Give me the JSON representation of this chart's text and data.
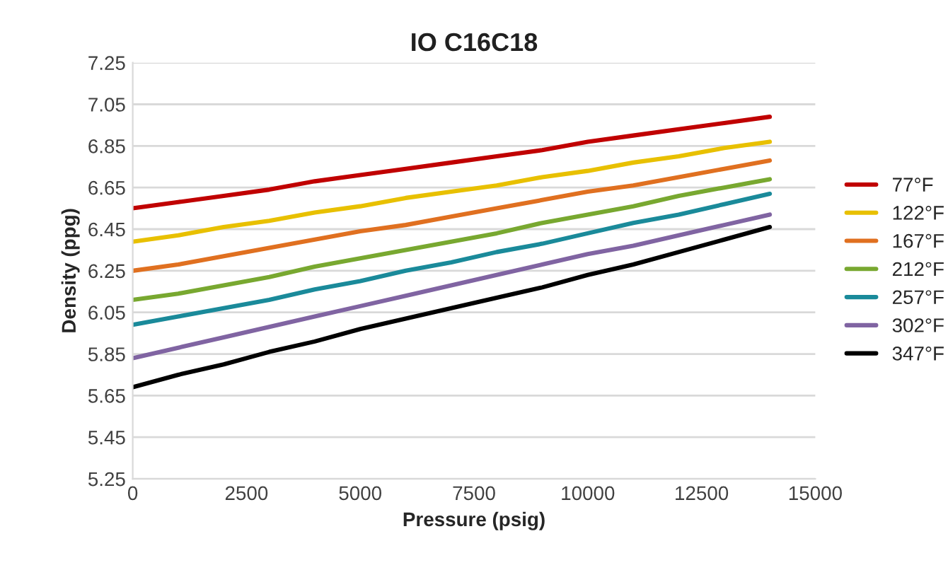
{
  "chart_data": {
    "type": "line",
    "title": "IO C16C18",
    "xlabel": "Pressure (psig)",
    "ylabel": "Density (ppg)",
    "x": [
      0,
      1000,
      2000,
      3000,
      4000,
      5000,
      6000,
      7000,
      8000,
      9000,
      10000,
      11000,
      12000,
      13000,
      14000
    ],
    "series": [
      {
        "name": "77°F",
        "color": "#c00000",
        "values": [
          6.55,
          6.58,
          6.61,
          6.64,
          6.68,
          6.71,
          6.74,
          6.77,
          6.8,
          6.83,
          6.87,
          6.9,
          6.93,
          6.96,
          6.99
        ]
      },
      {
        "name": "122°F",
        "color": "#e8c000",
        "values": [
          6.39,
          6.42,
          6.46,
          6.49,
          6.53,
          6.56,
          6.6,
          6.63,
          6.66,
          6.7,
          6.73,
          6.77,
          6.8,
          6.84,
          6.87
        ]
      },
      {
        "name": "167°F",
        "color": "#e07020",
        "values": [
          6.25,
          6.28,
          6.32,
          6.36,
          6.4,
          6.44,
          6.47,
          6.51,
          6.55,
          6.59,
          6.63,
          6.66,
          6.7,
          6.74,
          6.78
        ]
      },
      {
        "name": "212°F",
        "color": "#78a830",
        "values": [
          6.11,
          6.14,
          6.18,
          6.22,
          6.27,
          6.31,
          6.35,
          6.39,
          6.43,
          6.48,
          6.52,
          6.56,
          6.61,
          6.65,
          6.69
        ]
      },
      {
        "name": "257°F",
        "color": "#1a8a9a",
        "values": [
          5.99,
          6.03,
          6.07,
          6.11,
          6.16,
          6.2,
          6.25,
          6.29,
          6.34,
          6.38,
          6.43,
          6.48,
          6.52,
          6.57,
          6.62
        ]
      },
      {
        "name": "302°F",
        "color": "#8064a2",
        "values": [
          5.83,
          5.88,
          5.93,
          5.98,
          6.03,
          6.08,
          6.13,
          6.18,
          6.23,
          6.28,
          6.33,
          6.37,
          6.42,
          6.47,
          6.52
        ]
      },
      {
        "name": "347°F",
        "color": "#000000",
        "values": [
          5.69,
          5.75,
          5.8,
          5.86,
          5.91,
          5.97,
          6.02,
          6.07,
          6.12,
          6.17,
          6.23,
          6.28,
          6.34,
          6.4,
          6.46
        ]
      }
    ],
    "xlim": [
      0,
      15000
    ],
    "xticks": [
      0,
      2500,
      5000,
      7500,
      10000,
      12500,
      15000
    ],
    "ylim": [
      5.25,
      7.25
    ],
    "yticks": [
      5.25,
      5.45,
      5.65,
      5.85,
      6.05,
      6.25,
      6.45,
      6.65,
      6.85,
      7.05,
      7.25
    ],
    "grid": "y",
    "legend": "right",
    "marker": "none",
    "line_style": "solid"
  }
}
